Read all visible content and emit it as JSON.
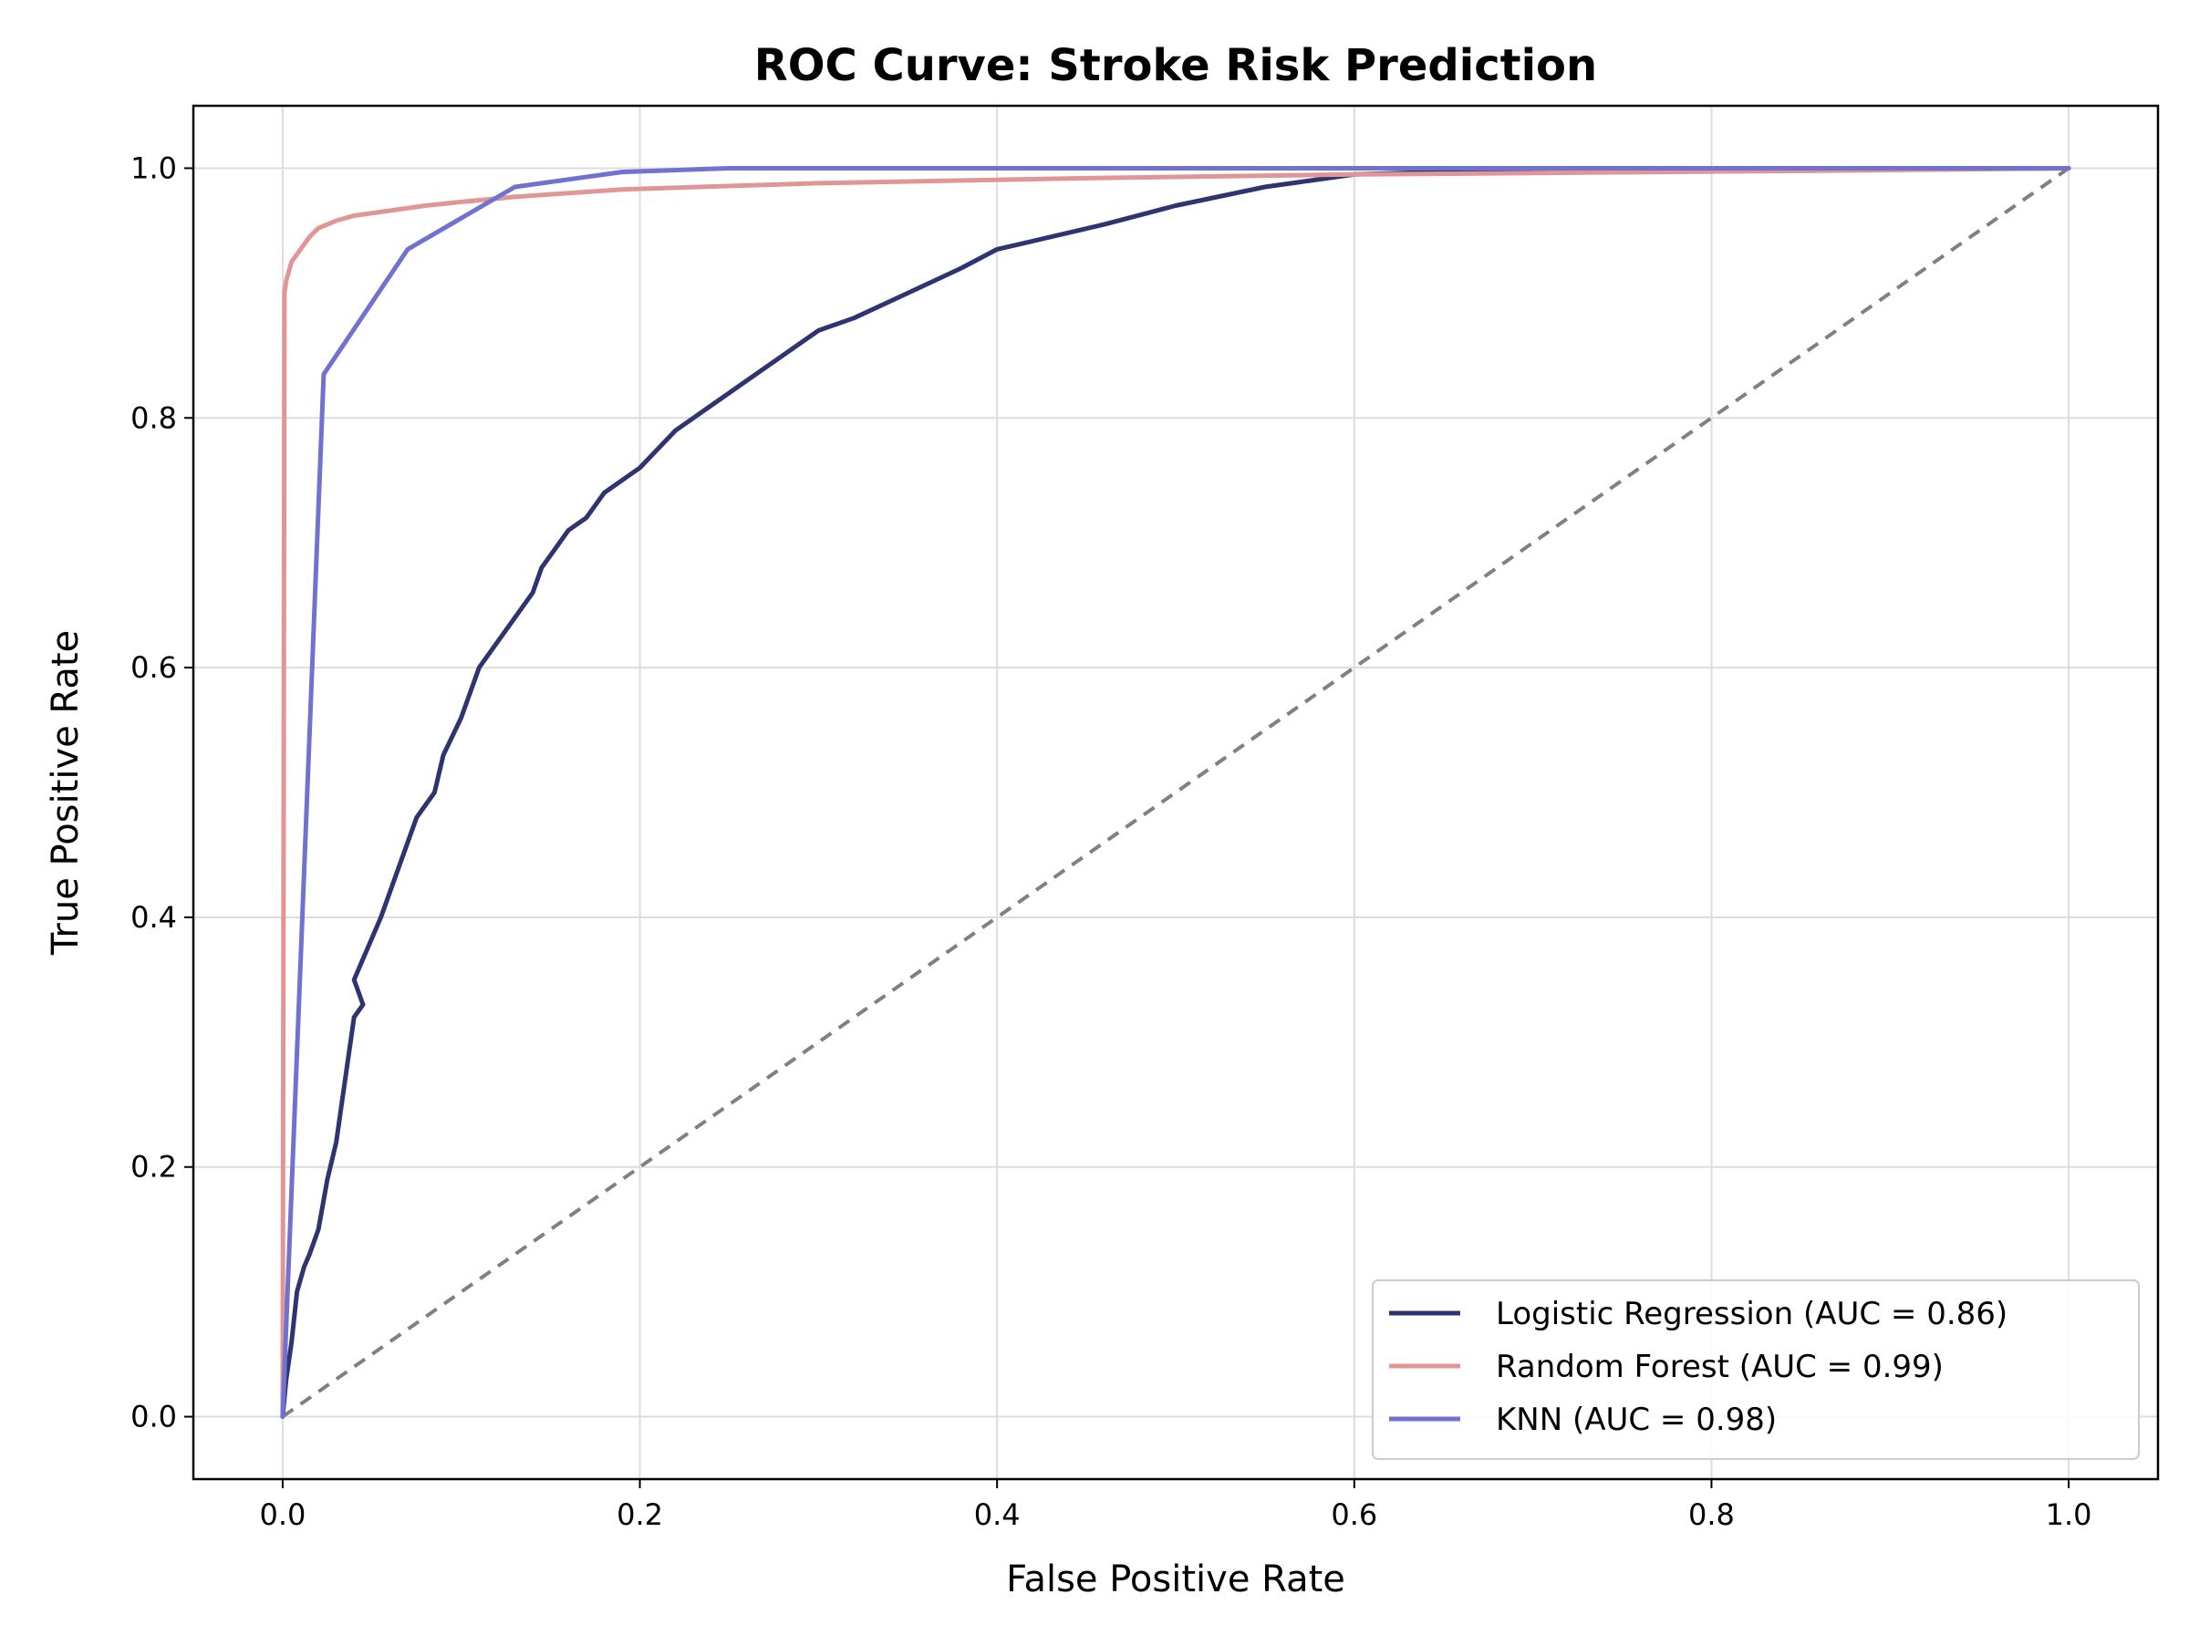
{
  "chart_data": {
    "type": "line",
    "title": "ROC Curve: Stroke Risk Prediction",
    "xlabel": "False Positive Rate",
    "ylabel": "True Positive Rate",
    "xlim": [
      -0.05,
      1.05
    ],
    "ylim": [
      -0.05,
      1.05
    ],
    "x_ticks": [
      0.0,
      0.2,
      0.4,
      0.6,
      0.8,
      1.0
    ],
    "x_tick_labels": [
      "0.0",
      "0.2",
      "0.4",
      "0.6",
      "0.8",
      "1.0"
    ],
    "y_ticks": [
      0.0,
      0.2,
      0.4,
      0.6,
      0.8,
      1.0
    ],
    "y_tick_labels": [
      "0.0",
      "0.2",
      "0.4",
      "0.6",
      "0.8",
      "1.0"
    ],
    "grid": true,
    "legend_position": "lower-right",
    "series": [
      {
        "name": "Logistic Regression (AUC = 0.86)",
        "color": "#2e3470",
        "x": [
          0.0,
          0.002,
          0.005,
          0.008,
          0.012,
          0.015,
          0.02,
          0.025,
          0.03,
          0.033,
          0.038,
          0.04,
          0.045,
          0.04,
          0.055,
          0.06,
          0.065,
          0.075,
          0.085,
          0.09,
          0.1,
          0.11,
          0.12,
          0.13,
          0.14,
          0.145,
          0.15,
          0.16,
          0.17,
          0.18,
          0.2,
          0.22,
          0.24,
          0.26,
          0.28,
          0.3,
          0.32,
          0.35,
          0.38,
          0.4,
          0.43,
          0.46,
          0.5,
          0.55,
          0.6,
          0.67,
          1.0
        ],
        "y": [
          0.0,
          0.03,
          0.06,
          0.1,
          0.12,
          0.13,
          0.15,
          0.19,
          0.22,
          0.25,
          0.3,
          0.32,
          0.33,
          0.35,
          0.4,
          0.42,
          0.44,
          0.48,
          0.5,
          0.53,
          0.56,
          0.6,
          0.62,
          0.64,
          0.66,
          0.68,
          0.69,
          0.71,
          0.72,
          0.74,
          0.76,
          0.79,
          0.81,
          0.83,
          0.85,
          0.87,
          0.88,
          0.9,
          0.92,
          0.935,
          0.945,
          0.955,
          0.97,
          0.985,
          0.995,
          0.998,
          1.0
        ]
      },
      {
        "name": "Random Forest (AUC = 0.99)",
        "color": "#e09597",
        "x": [
          0.0,
          0.001,
          0.002,
          0.005,
          0.01,
          0.015,
          0.02,
          0.03,
          0.04,
          0.06,
          0.08,
          0.1,
          0.13,
          0.19,
          0.3,
          0.45,
          0.6,
          0.86,
          1.0
        ],
        "y": [
          0.0,
          0.9,
          0.91,
          0.925,
          0.935,
          0.945,
          0.952,
          0.958,
          0.962,
          0.966,
          0.97,
          0.973,
          0.977,
          0.983,
          0.988,
          0.992,
          0.995,
          0.998,
          1.0
        ]
      },
      {
        "name": "KNN (AUC = 0.98)",
        "color": "#6f73cf",
        "x": [
          0.0,
          0.023,
          0.07,
          0.13,
          0.19,
          0.25,
          1.0
        ],
        "y": [
          0.0,
          0.835,
          0.935,
          0.985,
          0.997,
          1.0,
          1.0
        ]
      }
    ],
    "reference_line": {
      "color": "#808080",
      "x": [
        0.0,
        1.0
      ],
      "y": [
        0.0,
        1.0
      ]
    }
  }
}
